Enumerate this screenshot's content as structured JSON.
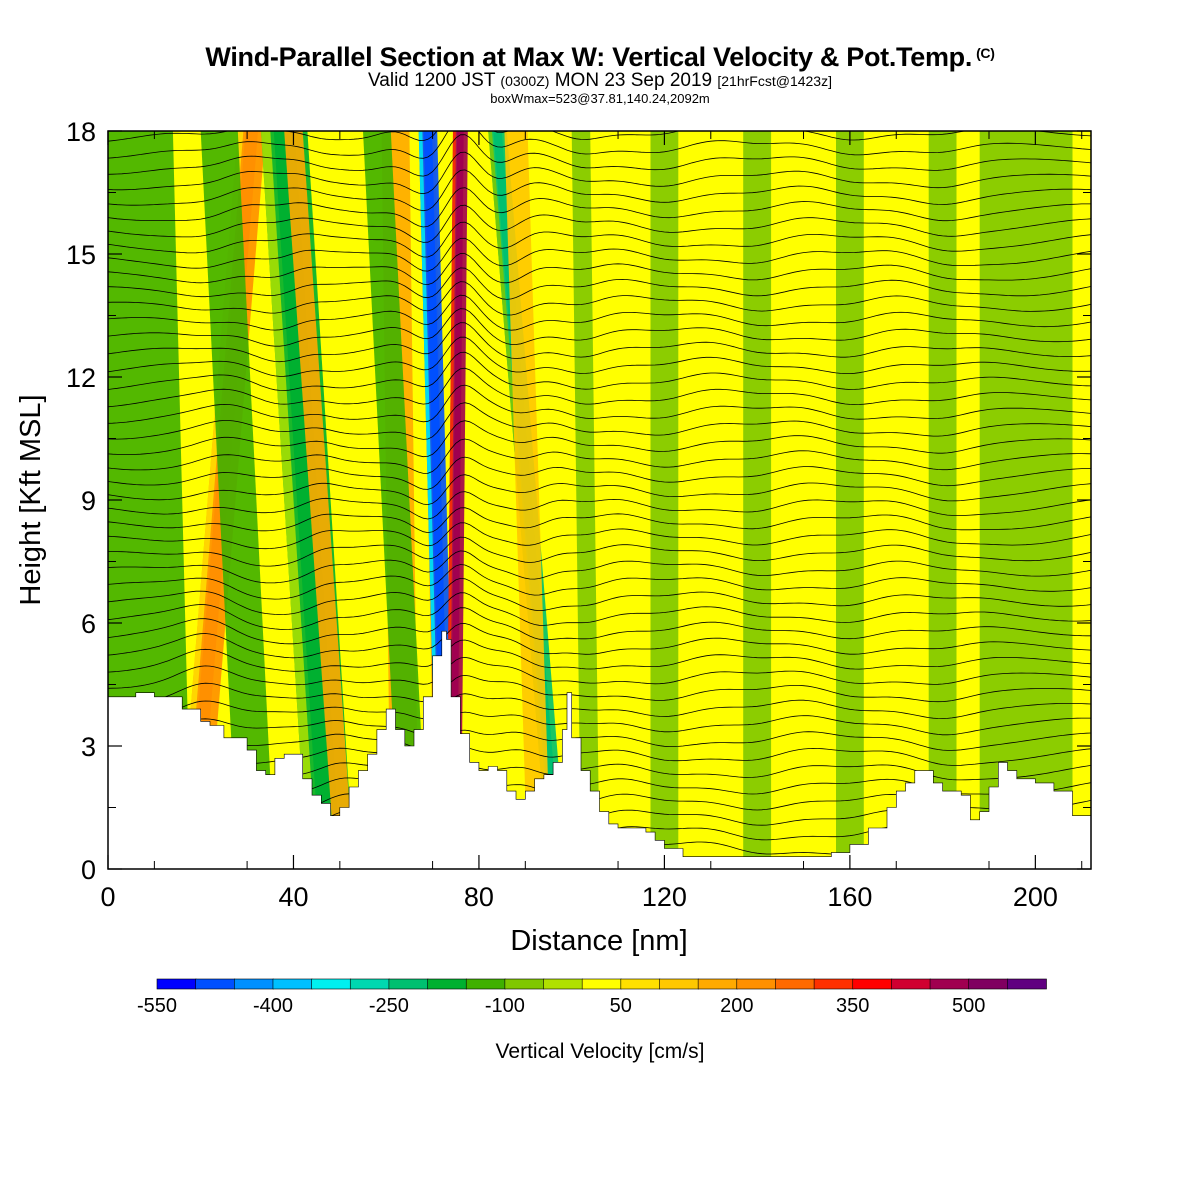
{
  "header": {
    "title": "Wind-Parallel Section at Max W: Vertical Velocity & Pot.Temp.",
    "title_mark": "(C)",
    "valid_prefix": "Valid 1200 JST",
    "valid_zulu": "(0300Z)",
    "valid_date": "MON 23 Sep 2019",
    "forecast": "[21hrFcst@1423z]",
    "box_info": "boxWmax=523@37.81,140.24,2092m"
  },
  "colorbar": {
    "label": "Vertical Velocity [cm/s]",
    "levels": [
      -550,
      -500,
      -450,
      -400,
      -350,
      -300,
      -250,
      -200,
      -150,
      -100,
      -50,
      0,
      50,
      100,
      150,
      200,
      250,
      300,
      350,
      400,
      450,
      500,
      550
    ],
    "tick_labels": [
      "-550",
      "-400",
      "-250",
      "-100",
      "50",
      "200",
      "350",
      "500"
    ],
    "colors": [
      "#0000ff",
      "#0050ff",
      "#0090ff",
      "#00c0ff",
      "#00f0f0",
      "#00d8b0",
      "#00c070",
      "#00b030",
      "#40b000",
      "#80c800",
      "#b0e000",
      "#ffff00",
      "#ffe000",
      "#ffc800",
      "#ffaa00",
      "#ff9000",
      "#ff6a00",
      "#ff3000",
      "#ff0000",
      "#d00030",
      "#a00050",
      "#800060",
      "#600080"
    ]
  },
  "chart_data": {
    "type": "heatmap",
    "title": "Wind-Parallel Section at Max W: Vertical Velocity & Pot.Temp.",
    "xlabel": "Distance [nm]",
    "ylabel": "Height [Kft MSL]",
    "xlim": [
      0,
      212
    ],
    "ylim": [
      0,
      18
    ],
    "x_ticks": [
      "0",
      "40",
      "80",
      "120",
      "160",
      "200"
    ],
    "y_ticks": [
      "0",
      "3",
      "6",
      "9",
      "12",
      "15",
      "18"
    ],
    "terrain": [
      [
        0,
        4.2
      ],
      [
        4,
        4.2
      ],
      [
        6,
        4.3
      ],
      [
        10,
        4.2
      ],
      [
        14,
        4.2
      ],
      [
        16,
        3.9
      ],
      [
        20,
        3.6
      ],
      [
        22,
        3.5
      ],
      [
        25,
        3.2
      ],
      [
        28,
        3.2
      ],
      [
        30,
        2.9
      ],
      [
        32,
        2.4
      ],
      [
        34,
        2.3
      ],
      [
        36,
        2.7
      ],
      [
        38,
        2.8
      ],
      [
        40,
        2.8
      ],
      [
        42,
        2.2
      ],
      [
        44,
        1.8
      ],
      [
        46,
        1.6
      ],
      [
        48,
        1.3
      ],
      [
        50,
        1.5
      ],
      [
        52,
        2.0
      ],
      [
        54,
        2.4
      ],
      [
        56,
        2.8
      ],
      [
        58,
        3.4
      ],
      [
        60,
        3.9
      ],
      [
        62,
        3.4
      ],
      [
        64,
        3.0
      ],
      [
        66,
        3.4
      ],
      [
        68,
        4.2
      ],
      [
        70,
        5.2
      ],
      [
        72,
        5.8
      ],
      [
        73,
        5.6
      ],
      [
        74,
        4.2
      ],
      [
        76,
        3.3
      ],
      [
        78,
        2.6
      ],
      [
        80,
        2.4
      ],
      [
        82,
        2.5
      ],
      [
        84,
        2.4
      ],
      [
        86,
        1.9
      ],
      [
        88,
        1.7
      ],
      [
        90,
        1.9
      ],
      [
        92,
        2.2
      ],
      [
        94,
        2.3
      ],
      [
        96,
        2.6
      ],
      [
        98,
        3.4
      ],
      [
        99,
        4.3
      ],
      [
        100,
        3.2
      ],
      [
        102,
        2.4
      ],
      [
        104,
        1.9
      ],
      [
        106,
        1.4
      ],
      [
        108,
        1.1
      ],
      [
        110,
        1.0
      ],
      [
        112,
        1.0
      ],
      [
        114,
        1.0
      ],
      [
        116,
        0.9
      ],
      [
        118,
        0.7
      ],
      [
        120,
        0.5
      ],
      [
        124,
        0.3
      ],
      [
        128,
        0.3
      ],
      [
        140,
        0.3
      ],
      [
        150,
        0.3
      ],
      [
        156,
        0.4
      ],
      [
        160,
        0.6
      ],
      [
        164,
        1.0
      ],
      [
        168,
        1.5
      ],
      [
        170,
        1.9
      ],
      [
        172,
        2.1
      ],
      [
        174,
        2.4
      ],
      [
        176,
        2.4
      ],
      [
        178,
        2.1
      ],
      [
        180,
        1.9
      ],
      [
        184,
        1.8
      ],
      [
        186,
        1.2
      ],
      [
        188,
        1.4
      ],
      [
        190,
        2.0
      ],
      [
        192,
        2.6
      ],
      [
        194,
        2.4
      ],
      [
        196,
        2.2
      ],
      [
        200,
        2.1
      ],
      [
        204,
        1.9
      ],
      [
        208,
        1.3
      ],
      [
        212,
        1.3
      ]
    ],
    "bands": [
      {
        "x0": 4,
        "x1": 0,
        "w": 28,
        "value": -150
      },
      {
        "x0": 18,
        "x1": 31,
        "w": 6,
        "value": 200
      },
      {
        "x0": 32,
        "x1": 24,
        "w": 8,
        "value": -150
      },
      {
        "x0": 48,
        "x1": 38,
        "w": 10,
        "value": -200
      },
      {
        "x0": 51,
        "x1": 40,
        "w": 4,
        "value": 150
      },
      {
        "x0": 64,
        "x1": 62,
        "w": 6,
        "value": 150
      },
      {
        "x0": 66,
        "x1": 58,
        "w": 6,
        "value": -150
      },
      {
        "x0": 72,
        "x1": 69,
        "w": 3,
        "value": 150
      },
      {
        "x0": 73,
        "x1": 69,
        "w": 4,
        "value": -500
      },
      {
        "x0": 74.5,
        "x1": 76,
        "w": 3.2,
        "value": 450
      },
      {
        "x0": 97,
        "x1": 84,
        "w": 4,
        "value": -250
      },
      {
        "x0": 93,
        "x1": 88,
        "w": 5,
        "value": 100
      },
      {
        "x0": 104,
        "x1": 102,
        "w": 4,
        "value": -100
      },
      {
        "x0": 120,
        "x1": 120,
        "w": 6,
        "value": -100
      },
      {
        "x0": 140,
        "x1": 140,
        "w": 6,
        "value": -100
      },
      {
        "x0": 160,
        "x1": 160,
        "w": 6,
        "value": -100
      },
      {
        "x0": 180,
        "x1": 180,
        "w": 6,
        "value": -100
      },
      {
        "x0": 198,
        "x1": 198,
        "w": 20,
        "value": -100
      }
    ],
    "grid": false
  }
}
